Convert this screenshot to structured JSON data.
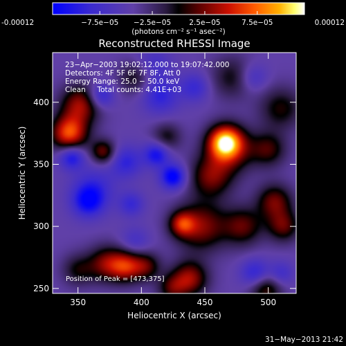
{
  "chart_data": {
    "type": "heatmap",
    "title": "Reconstructed RHESSI Image",
    "xlabel": "Heliocentric X (arcsec)",
    "ylabel": "Heliocentric Y (arcsec)",
    "xlim": [
      330,
      522
    ],
    "ylim": [
      246,
      440
    ],
    "x_ticks": [
      350,
      400,
      450,
      500
    ],
    "y_ticks": [
      250,
      300,
      350,
      400
    ],
    "colorbar": {
      "colormap": "blue-purple-red-yellow-white",
      "range": [
        -0.00012,
        0.00012
      ],
      "tick_labels": [
        "-0.00012",
        "−7.5e−05",
        "−2.5e−05",
        "2.5e−05",
        "7.5e−05",
        "0.00012"
      ],
      "tick_values": [
        -0.00012,
        -7.5e-05,
        -2.5e-05,
        2.5e-05,
        7.5e-05,
        0.00012
      ],
      "unit_label": "(photons cm⁻² s⁻¹ asec⁻²)"
    },
    "info_lines": [
      "23−Apr−2003 19:02:12.000 to 19:07:42.000",
      "Detectors: 4F 5F 6F 7F 8F, Att 0",
      "Energy Range: 25.0 − 50.0 keV",
      "Clean     Total counts: 4.41E+03"
    ],
    "peak_label": "Position of Peak = [473,375]",
    "peak": [
      473,
      375
    ],
    "blobs": [
      {
        "x": 466,
        "y": 368,
        "sigma": 9,
        "amp": 1.0
      },
      {
        "x": 470,
        "y": 362,
        "sigma": 13,
        "amp": 0.55
      },
      {
        "x": 455,
        "y": 340,
        "sigma": 12,
        "amp": 0.55
      },
      {
        "x": 447,
        "y": 300,
        "sigma": 14,
        "amp": 0.6
      },
      {
        "x": 432,
        "y": 302,
        "sigma": 7,
        "amp": 0.6
      },
      {
        "x": 438,
        "y": 258,
        "sigma": 10,
        "amp": 0.65
      },
      {
        "x": 424,
        "y": 250,
        "sigma": 8,
        "amp": 0.4
      },
      {
        "x": 480,
        "y": 300,
        "sigma": 11,
        "amp": 0.5
      },
      {
        "x": 505,
        "y": 320,
        "sigma": 10,
        "amp": 0.55
      },
      {
        "x": 512,
        "y": 300,
        "sigma": 9,
        "amp": 0.5
      },
      {
        "x": 500,
        "y": 362,
        "sigma": 10,
        "amp": 0.45
      },
      {
        "x": 510,
        "y": 395,
        "sigma": 12,
        "amp": 0.4
      },
      {
        "x": 472,
        "y": 420,
        "sigma": 12,
        "amp": 0.35
      },
      {
        "x": 343,
        "y": 375,
        "sigma": 10,
        "amp": 0.9
      },
      {
        "x": 352,
        "y": 398,
        "sigma": 11,
        "amp": 0.65
      },
      {
        "x": 370,
        "y": 360,
        "sigma": 7,
        "amp": 0.55
      },
      {
        "x": 372,
        "y": 270,
        "sigma": 10,
        "amp": 0.55
      },
      {
        "x": 388,
        "y": 268,
        "sigma": 9,
        "amp": 0.7
      },
      {
        "x": 404,
        "y": 268,
        "sigma": 8,
        "amp": 0.45
      },
      {
        "x": 350,
        "y": 265,
        "sigma": 9,
        "amp": 0.35
      },
      {
        "x": 420,
        "y": 372,
        "sigma": 8,
        "amp": 0.35
      },
      {
        "x": 395,
        "y": 420,
        "sigma": 9,
        "amp": 0.35
      },
      {
        "x": 498,
        "y": 250,
        "sigma": 9,
        "amp": 0.5
      },
      {
        "x": 358,
        "y": 320,
        "sigma": 9,
        "amp": -0.55
      },
      {
        "x": 363,
        "y": 332,
        "sigma": 12,
        "amp": -0.3
      },
      {
        "x": 345,
        "y": 356,
        "sigma": 7,
        "amp": -0.55
      },
      {
        "x": 368,
        "y": 405,
        "sigma": 7,
        "amp": -0.45
      },
      {
        "x": 412,
        "y": 358,
        "sigma": 7,
        "amp": -0.55
      },
      {
        "x": 388,
        "y": 352,
        "sigma": 9,
        "amp": -0.4
      },
      {
        "x": 392,
        "y": 318,
        "sigma": 7,
        "amp": -0.35
      },
      {
        "x": 425,
        "y": 340,
        "sigma": 7,
        "amp": -0.7
      },
      {
        "x": 415,
        "y": 405,
        "sigma": 10,
        "amp": -0.4
      },
      {
        "x": 442,
        "y": 412,
        "sigma": 8,
        "amp": -0.35
      },
      {
        "x": 490,
        "y": 262,
        "sigma": 8,
        "amp": -0.45
      },
      {
        "x": 510,
        "y": 262,
        "sigma": 7,
        "amp": -0.3
      },
      {
        "x": 395,
        "y": 288,
        "sigma": 8,
        "amp": -0.25
      },
      {
        "x": 410,
        "y": 430,
        "sigma": 10,
        "amp": -0.25
      },
      {
        "x": 488,
        "y": 420,
        "sigma": 8,
        "amp": -0.3
      }
    ]
  },
  "footer": {
    "timestamp": "31−May−2013 21:42"
  },
  "colors": {
    "background": "#000000",
    "text": "#ffffff"
  }
}
